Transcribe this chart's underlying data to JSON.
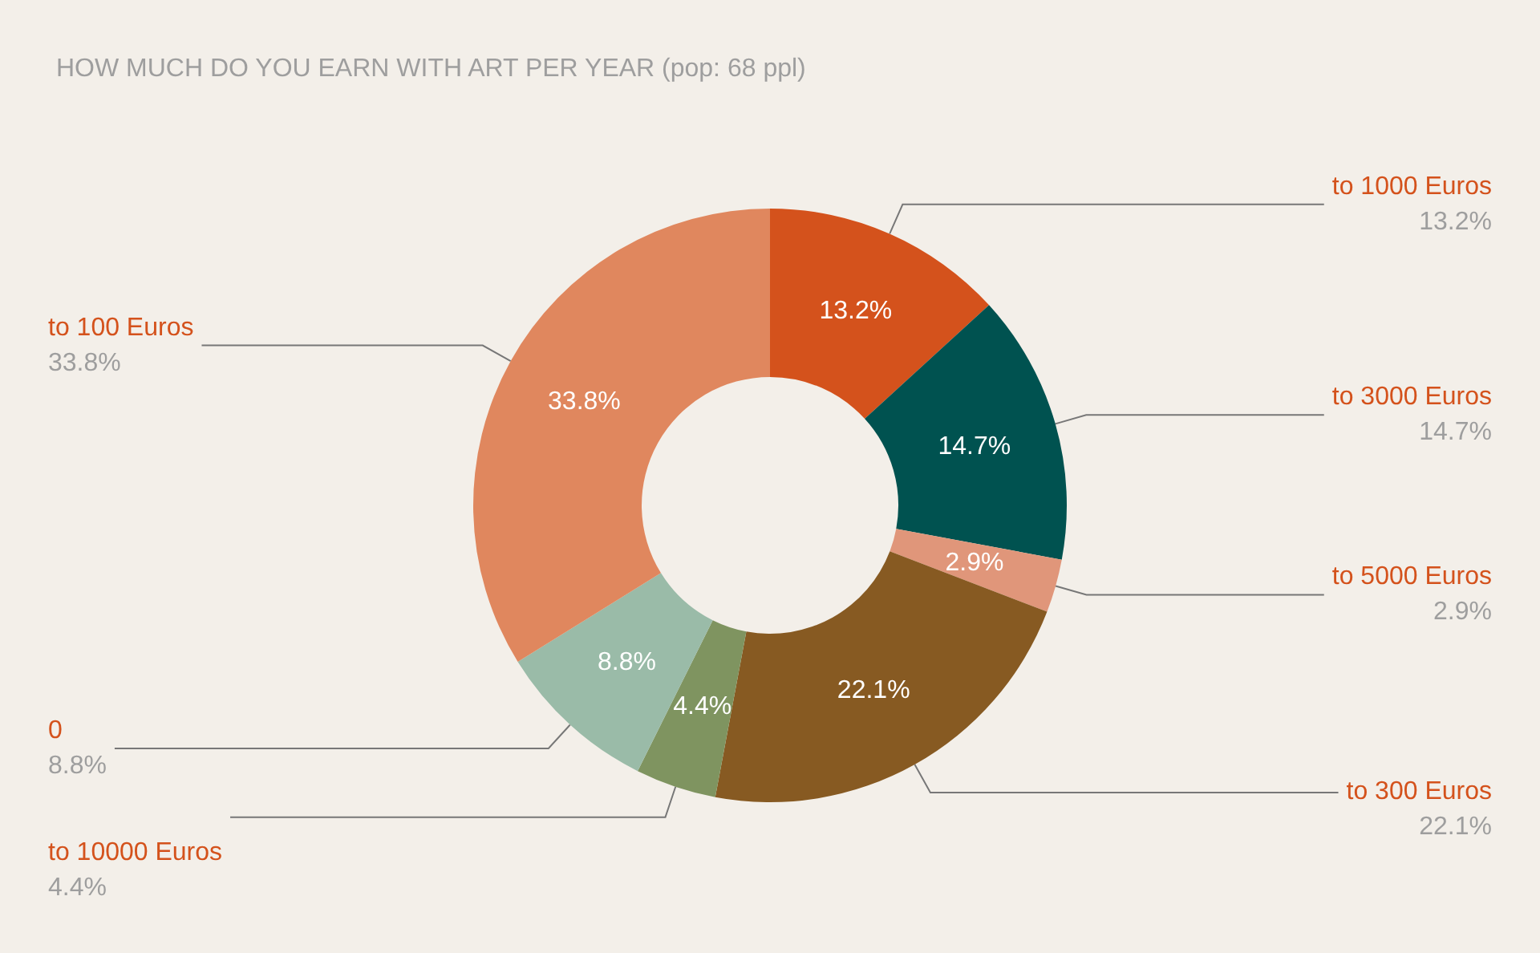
{
  "chart_data": {
    "type": "donut",
    "title": "HOW MUCH DO YOU EARN WITH ART PER YEAR (pop: 68 ppl)",
    "categories": [
      "to 1000 Euros",
      "to 3000 Euros",
      "to 5000 Euros",
      "to 300 Euros",
      "to 10000 Euros",
      "0",
      "to 100 Euros"
    ],
    "values": [
      13.2,
      14.7,
      2.9,
      22.1,
      4.4,
      8.8,
      33.8
    ],
    "colors": [
      "#d4521c",
      "#005250",
      "#e0967a",
      "#875a22",
      "#7f9460",
      "#9abba8",
      "#e0875e"
    ],
    "value_labels": [
      "13.2%",
      "14.7%",
      "2.9%",
      "22.1%",
      "4.4%",
      "8.8%",
      "33.8%"
    ],
    "legend": false
  }
}
